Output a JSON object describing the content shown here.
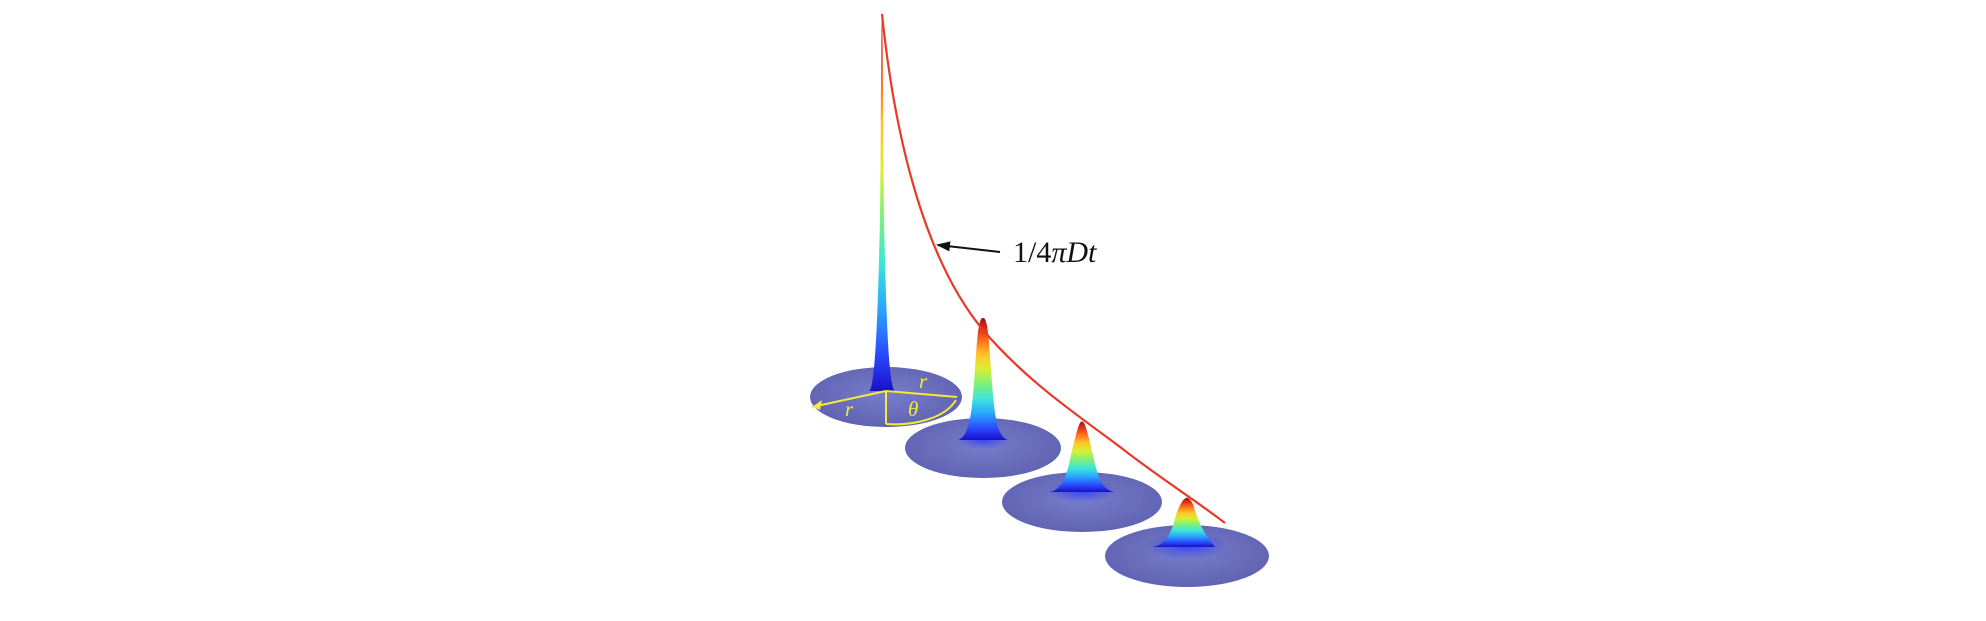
{
  "figure": {
    "description_label": "1/4πDt",
    "label_parts": {
      "prefix": "1/4",
      "pi": "π",
      "D": "D",
      "t": "t"
    },
    "polar_labels": {
      "radius_1": "r",
      "radius_2": "r",
      "angle": "θ"
    },
    "peaks": [
      {
        "name": "peak-1",
        "relative_height": 1.0
      },
      {
        "name": "peak-2",
        "relative_height": 0.17
      },
      {
        "name": "peak-3",
        "relative_height": 0.12
      },
      {
        "name": "peak-4",
        "relative_height": 0.09
      }
    ],
    "colors": {
      "envelope": "#e8392b",
      "disk": "#5a5fb4",
      "polar_lines": "#f2ea3a",
      "arrow": "#111111",
      "colormap": [
        "#1a10c8",
        "#2b4cff",
        "#2aa8ff",
        "#3ee6d8",
        "#7ef07a",
        "#d8ef34",
        "#ffc428",
        "#ff6a1a",
        "#d8261a",
        "#8b1a14"
      ]
    }
  }
}
